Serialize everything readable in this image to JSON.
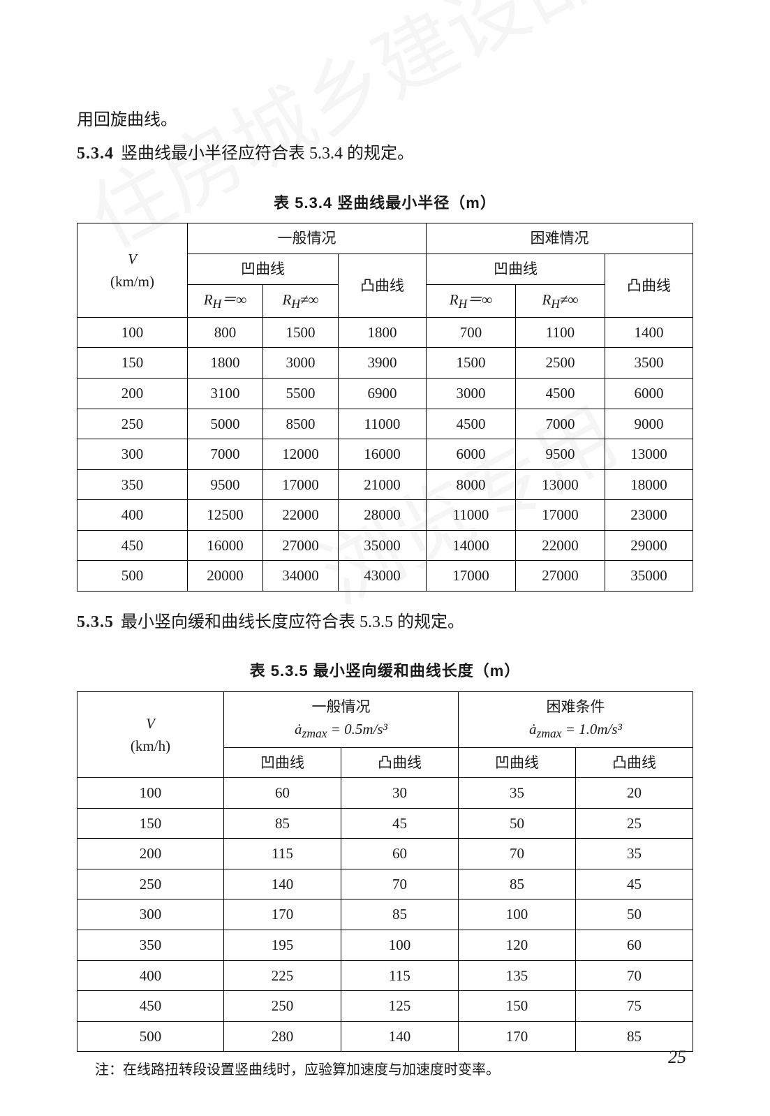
{
  "trailing_line": "用回旋曲线。",
  "clause534": {
    "num": "5.3.4",
    "text": "竖曲线最小半径应符合表 5.3.4 的规定。"
  },
  "table534": {
    "caption": "表 5.3.4  竖曲线最小半径（m）",
    "head": {
      "v_label_top": "V",
      "v_label_bottom": "(km/m)",
      "normal": "一般情况",
      "hard": "困难情况",
      "concave": "凹曲线",
      "convex": "凸曲线",
      "rh_inf": "R<sub>H</sub>＝∞",
      "rh_neq": "R<sub>H</sub>≠∞"
    },
    "rows": [
      {
        "v": "100",
        "a": "800",
        "b": "1500",
        "c": "1800",
        "d": "700",
        "e": "1100",
        "f": "1400"
      },
      {
        "v": "150",
        "a": "1800",
        "b": "3000",
        "c": "3900",
        "d": "1500",
        "e": "2500",
        "f": "3500"
      },
      {
        "v": "200",
        "a": "3100",
        "b": "5500",
        "c": "6900",
        "d": "3000",
        "e": "4500",
        "f": "6000"
      },
      {
        "v": "250",
        "a": "5000",
        "b": "8500",
        "c": "11000",
        "d": "4500",
        "e": "7000",
        "f": "9000"
      },
      {
        "v": "300",
        "a": "7000",
        "b": "12000",
        "c": "16000",
        "d": "6000",
        "e": "9500",
        "f": "13000"
      },
      {
        "v": "350",
        "a": "9500",
        "b": "17000",
        "c": "21000",
        "d": "8000",
        "e": "13000",
        "f": "18000"
      },
      {
        "v": "400",
        "a": "12500",
        "b": "22000",
        "c": "28000",
        "d": "11000",
        "e": "17000",
        "f": "23000"
      },
      {
        "v": "450",
        "a": "16000",
        "b": "27000",
        "c": "35000",
        "d": "14000",
        "e": "22000",
        "f": "29000"
      },
      {
        "v": "500",
        "a": "20000",
        "b": "34000",
        "c": "43000",
        "d": "17000",
        "e": "27000",
        "f": "35000"
      }
    ]
  },
  "clause535": {
    "num": "5.3.5",
    "text": "最小竖向缓和曲线长度应符合表 5.3.5 的规定。"
  },
  "table535": {
    "caption": "表 5.3.5  最小竖向缓和曲线长度（m）",
    "head": {
      "v_label_top": "V",
      "v_label_bottom": "(km/h)",
      "normal_top": "一般情况",
      "normal_sub": "ȧ<sub>zmax</sub> = 0.5m/s³",
      "hard_top": "困难条件",
      "hard_sub": "ȧ<sub>zmax</sub> = 1.0m/s³",
      "concave": "凹曲线",
      "convex": "凸曲线"
    },
    "rows": [
      {
        "v": "100",
        "a": "60",
        "b": "30",
        "c": "35",
        "d": "20"
      },
      {
        "v": "150",
        "a": "85",
        "b": "45",
        "c": "50",
        "d": "25"
      },
      {
        "v": "200",
        "a": "115",
        "b": "60",
        "c": "70",
        "d": "35"
      },
      {
        "v": "250",
        "a": "140",
        "b": "70",
        "c": "85",
        "d": "45"
      },
      {
        "v": "300",
        "a": "170",
        "b": "85",
        "c": "100",
        "d": "50"
      },
      {
        "v": "350",
        "a": "195",
        "b": "100",
        "c": "120",
        "d": "60"
      },
      {
        "v": "400",
        "a": "225",
        "b": "115",
        "c": "135",
        "d": "70"
      },
      {
        "v": "450",
        "a": "250",
        "b": "125",
        "c": "150",
        "d": "75"
      },
      {
        "v": "500",
        "a": "280",
        "b": "140",
        "c": "170",
        "d": "85"
      }
    ],
    "note": "注：在线路扭转段设置竖曲线时，应验算加速度与加速度时变率。"
  },
  "page_number": "25",
  "watermarks": {
    "w1": "住房城乡建设部信息公开",
    "w2": "浏览专用"
  }
}
